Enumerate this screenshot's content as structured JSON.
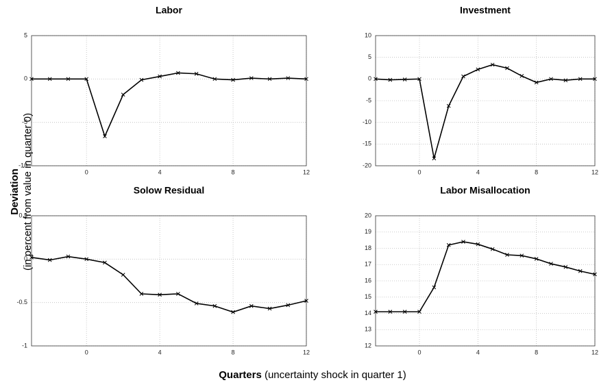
{
  "chart_data": [
    {
      "type": "line",
      "title": "Labor",
      "x": [
        -3,
        -2,
        -1,
        0,
        1,
        2,
        3,
        4,
        5,
        6,
        7,
        8,
        9,
        10,
        11,
        12
      ],
      "values": [
        0,
        0,
        0,
        0,
        -6.6,
        -1.8,
        -0.1,
        0.3,
        0.7,
        0.6,
        0,
        -0.1,
        0.1,
        0,
        0.1,
        0
      ],
      "color": "#000000",
      "xlim": [
        -3,
        12
      ],
      "xticks": [
        0,
        4,
        8,
        12
      ],
      "ylim": [
        -10,
        5
      ],
      "yticks": [
        -10,
        -5,
        0,
        5
      ],
      "grid": true
    },
    {
      "type": "line",
      "title": "Investment",
      "x": [
        -3,
        -2,
        -1,
        0,
        1,
        2,
        3,
        4,
        5,
        6,
        7,
        8,
        9,
        10,
        11,
        12
      ],
      "values": [
        0,
        -0.2,
        -0.1,
        0,
        -18.3,
        -6.2,
        0.6,
        2.2,
        3.3,
        2.5,
        0.7,
        -0.8,
        0,
        -0.3,
        0,
        0
      ],
      "color": "#000000",
      "xlim": [
        -3,
        12
      ],
      "xticks": [
        0,
        4,
        8,
        12
      ],
      "ylim": [
        -20,
        10
      ],
      "yticks": [
        -20,
        -15,
        -10,
        -5,
        0,
        5,
        10
      ],
      "grid": true
    },
    {
      "type": "line",
      "title": "Solow Residual",
      "x": [
        -3,
        -2,
        -1,
        0,
        1,
        2,
        3,
        4,
        5,
        6,
        7,
        8,
        9,
        10,
        11,
        12
      ],
      "values": [
        0.02,
        -0.01,
        0.03,
        0,
        -0.04,
        -0.18,
        -0.4,
        -0.41,
        -0.4,
        -0.51,
        -0.54,
        -0.61,
        -0.54,
        -0.57,
        -0.53,
        -0.48
      ],
      "color": "#000000",
      "xlim": [
        -3,
        12
      ],
      "xticks": [
        0,
        4,
        8,
        12
      ],
      "ylim": [
        -1,
        0.5
      ],
      "yticks": [
        -1,
        -0.5,
        0,
        0.5
      ],
      "grid": true
    },
    {
      "type": "line",
      "title": "Labor Misallocation",
      "x": [
        -3,
        -2,
        -1,
        0,
        1,
        2,
        3,
        4,
        5,
        6,
        7,
        8,
        9,
        10,
        11,
        12
      ],
      "values": [
        14.1,
        14.1,
        14.1,
        14.1,
        15.6,
        18.2,
        18.4,
        18.25,
        17.95,
        17.6,
        17.55,
        17.35,
        17.05,
        16.85,
        16.6,
        16.4
      ],
      "color": "#000000",
      "xlim": [
        -3,
        12
      ],
      "xticks": [
        0,
        4,
        8,
        12
      ],
      "ylim": [
        12,
        20
      ],
      "yticks": [
        12,
        13,
        14,
        15,
        16,
        17,
        18,
        19,
        20
      ],
      "grid": true
    }
  ],
  "ylabel": "Deviation",
  "ylabel_detail": "(in percent from value in quarter 0)",
  "xlabel": "Quarters",
  "xlabel_detail": "(uncertainty shock in quarter 1)"
}
